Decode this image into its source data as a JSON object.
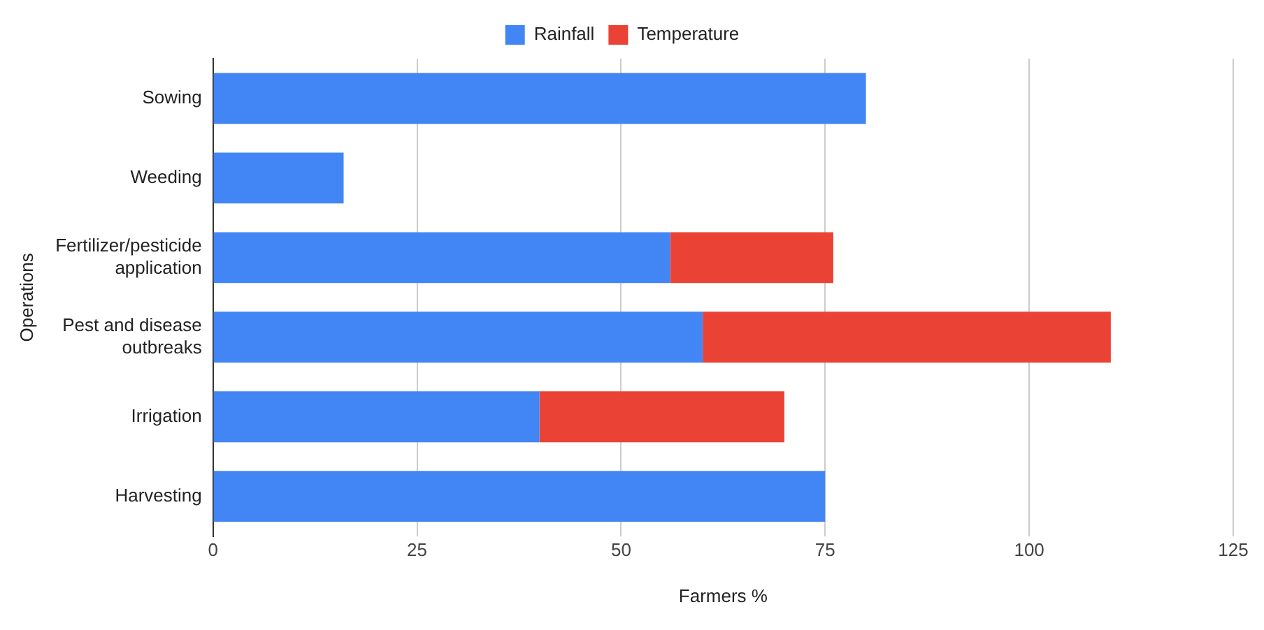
{
  "chart_data": {
    "type": "bar",
    "orientation": "horizontal",
    "stacked": true,
    "xlabel": "Farmers %",
    "ylabel": "Operations",
    "categories": [
      "Sowing",
      "Weeding",
      "Fertilizer/pesticide application",
      "Pest and disease outbreaks",
      "Irrigation",
      "Harvesting"
    ],
    "series": [
      {
        "name": "Rainfall",
        "color": "#4285f4",
        "values": [
          80,
          16,
          56,
          60,
          40,
          75
        ]
      },
      {
        "name": "Temperature",
        "color": "#ea4335",
        "values": [
          null,
          null,
          20,
          50,
          30,
          null
        ]
      }
    ],
    "xlim": [
      0,
      125
    ],
    "xticks": [
      0,
      25,
      50,
      75,
      100,
      125
    ],
    "grid": "x",
    "legend": "top"
  }
}
